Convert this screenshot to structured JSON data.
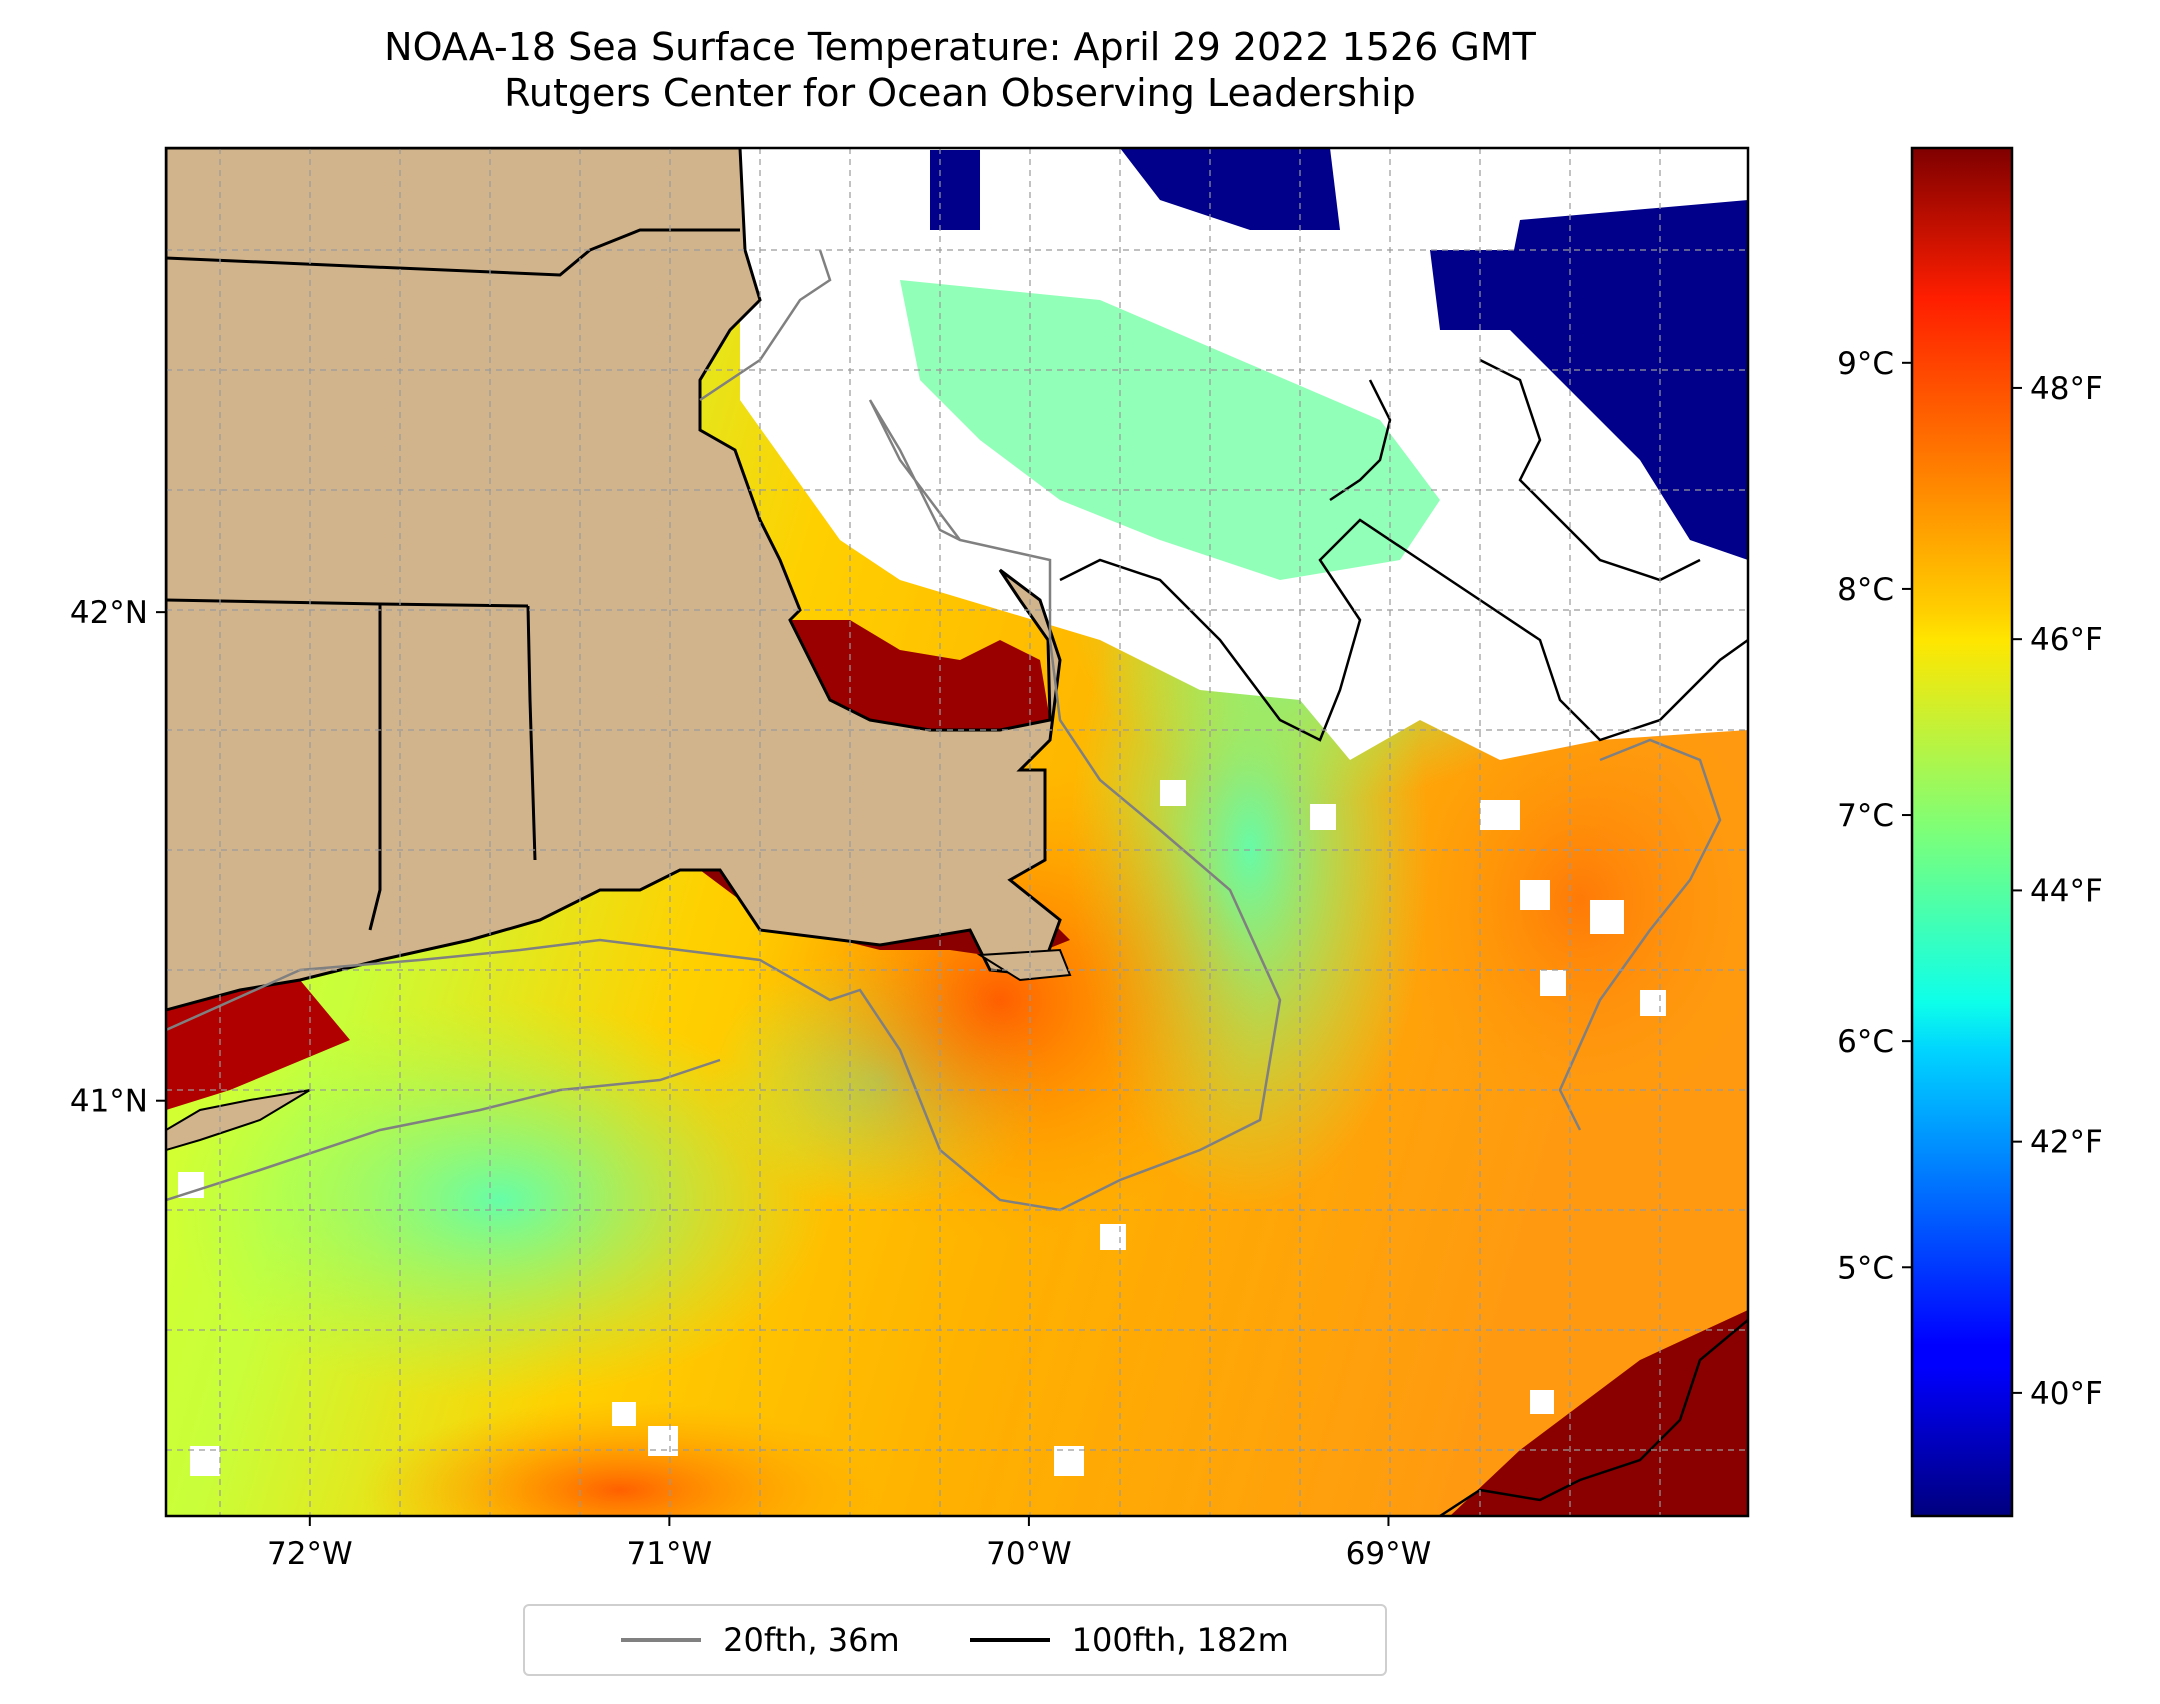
{
  "title": {
    "line1": "NOAA-18 Sea Surface Temperature: April 29 2022 1526 GMT",
    "line2": "Rutgers Center for Ocean Observing Leadership"
  },
  "map": {
    "lon_range": [
      -72.4,
      -68.0
    ],
    "lat_range": [
      40.15,
      42.95
    ],
    "lon_ticks": [
      {
        "value": -72,
        "label": "72°W"
      },
      {
        "value": -71,
        "label": "71°W"
      },
      {
        "value": -70,
        "label": "70°W"
      },
      {
        "value": -69,
        "label": "69°W"
      }
    ],
    "lat_ticks": [
      {
        "value": 42,
        "label": "42°N"
      },
      {
        "value": 41,
        "label": "41°N"
      }
    ],
    "grid": true,
    "land_color": "#d2b48c"
  },
  "colorbar": {
    "colormap": "jet",
    "range_c": [
      3.9,
      9.95
    ],
    "celsius_ticks": [
      {
        "value": 9,
        "label": "9°C"
      },
      {
        "value": 8,
        "label": "8°C"
      },
      {
        "value": 7,
        "label": "7°C"
      },
      {
        "value": 6,
        "label": "6°C"
      },
      {
        "value": 5,
        "label": "5°C"
      }
    ],
    "fahrenheit_ticks": [
      {
        "value": 48,
        "label": "48°F"
      },
      {
        "value": 46,
        "label": "46°F"
      },
      {
        "value": 44,
        "label": "44°F"
      },
      {
        "value": 42,
        "label": "42°F"
      },
      {
        "value": 40,
        "label": "40°F"
      }
    ]
  },
  "legend": {
    "placement": "bottom-center",
    "items": [
      {
        "label": "20fth, 36m",
        "color": "#808080"
      },
      {
        "label": "100fth, 182m",
        "color": "#000000"
      }
    ]
  }
}
